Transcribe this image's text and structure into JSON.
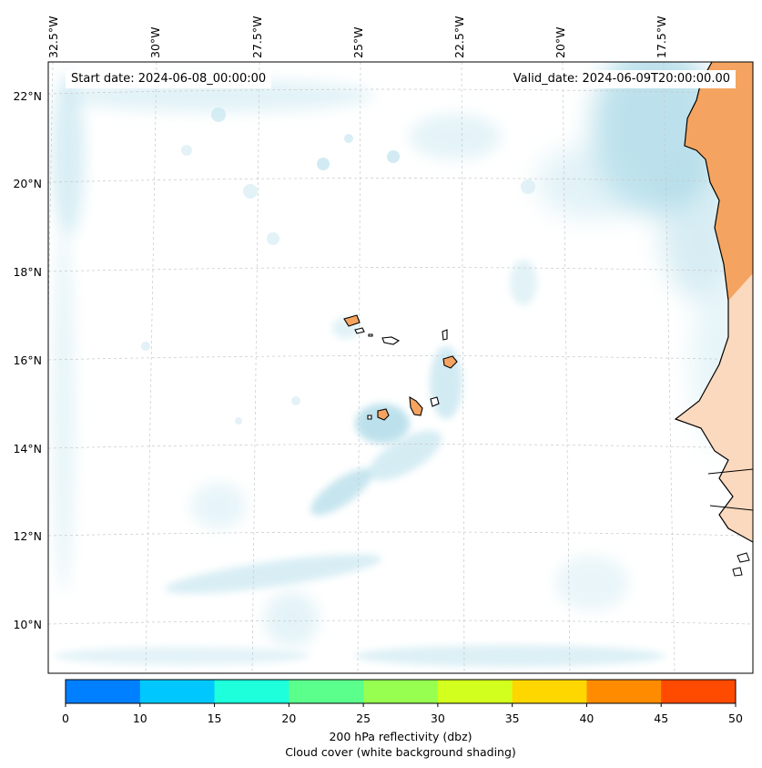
{
  "header": {
    "start_date": "Start date: 2024-06-08_00:00:00",
    "valid_date": "Valid_date: 2024-06-09T20:00:00.00"
  },
  "grid": {
    "lon_labels": [
      "32.5°W",
      "30°W",
      "27.5°W",
      "25°W",
      "22.5°W",
      "20°W",
      "17.5°W"
    ],
    "lat_labels": [
      "22°N",
      "20°N",
      "18°N",
      "16°N",
      "14°N",
      "12°N",
      "10°N"
    ]
  },
  "colorbar": {
    "ticks": [
      "0",
      "10",
      "15",
      "20",
      "25",
      "30",
      "35",
      "40",
      "45",
      "50"
    ],
    "colors": [
      "#0080ff",
      "#00c8ff",
      "#1effdc",
      "#5aff8c",
      "#96ff50",
      "#d2ff1e",
      "#ffd700",
      "#ff8c00",
      "#ff4b00"
    ],
    "label_line1": "200 hPa reflectivity (dbz)",
    "label_line2": "Cloud cover (white background shading)"
  },
  "colors": {
    "land": "#f4a460",
    "cloud": "#a8d8e6",
    "coastline": "#000000",
    "gridline": "#c8c8c8"
  }
}
